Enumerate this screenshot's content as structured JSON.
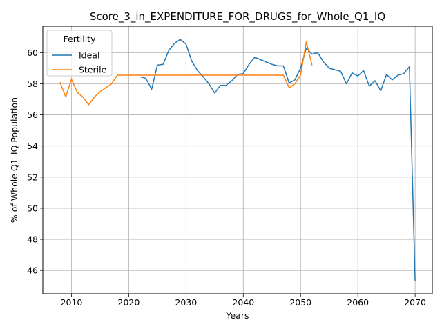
{
  "chart_data": {
    "type": "line",
    "title": "Score_3_in_EXPENDITURE_FOR_DRUGS_for_Whole_Q1_IQ",
    "xlabel": "Years",
    "ylabel": "% of Whole Q1_IQ Population",
    "xlim": [
      2005,
      2073
    ],
    "ylim": [
      44.5,
      61.7
    ],
    "xticks": [
      2010,
      2020,
      2030,
      2040,
      2050,
      2060,
      2070
    ],
    "yticks": [
      46,
      48,
      50,
      52,
      54,
      56,
      58,
      60
    ],
    "grid": true,
    "legend": {
      "title": "Fertility",
      "placement": "top-left"
    },
    "series": [
      {
        "name": "Ideal",
        "color": "#1f77b4",
        "points": [
          [
            2022,
            58.45
          ],
          [
            2023,
            58.35
          ],
          [
            2024,
            57.65
          ],
          [
            2025,
            59.2
          ],
          [
            2026,
            59.25
          ],
          [
            2027,
            60.15
          ],
          [
            2028,
            60.6
          ],
          [
            2029,
            60.85
          ],
          [
            2030,
            60.55
          ],
          [
            2031,
            59.45
          ],
          [
            2032,
            58.85
          ],
          [
            2033,
            58.45
          ],
          [
            2034,
            58.0
          ],
          [
            2035,
            57.4
          ],
          [
            2036,
            57.9
          ],
          [
            2037,
            57.9
          ],
          [
            2038,
            58.2
          ],
          [
            2039,
            58.6
          ],
          [
            2040,
            58.65
          ],
          [
            2041,
            59.25
          ],
          [
            2042,
            59.7
          ],
          [
            2043,
            59.55
          ],
          [
            2044,
            59.4
          ],
          [
            2045,
            59.25
          ],
          [
            2046,
            59.15
          ],
          [
            2047,
            59.15
          ],
          [
            2048,
            58.05
          ],
          [
            2049,
            58.25
          ],
          [
            2050,
            59.0
          ],
          [
            2051,
            60.3
          ],
          [
            2052,
            59.9
          ],
          [
            2053,
            60.0
          ],
          [
            2054,
            59.4
          ],
          [
            2055,
            59.0
          ],
          [
            2056,
            58.9
          ],
          [
            2057,
            58.8
          ],
          [
            2058,
            58.0
          ],
          [
            2059,
            58.7
          ],
          [
            2060,
            58.5
          ],
          [
            2061,
            58.85
          ],
          [
            2062,
            57.85
          ],
          [
            2063,
            58.2
          ],
          [
            2064,
            57.55
          ],
          [
            2065,
            58.6
          ],
          [
            2066,
            58.25
          ],
          [
            2067,
            58.55
          ],
          [
            2068,
            58.65
          ],
          [
            2069,
            59.1
          ],
          [
            2070,
            45.3
          ]
        ]
      },
      {
        "name": "Sterile",
        "color": "#ff7f0e",
        "points": [
          [
            2008,
            58.1
          ],
          [
            2009,
            57.15
          ],
          [
            2010,
            58.3
          ],
          [
            2011,
            57.45
          ],
          [
            2012,
            57.15
          ],
          [
            2013,
            56.65
          ],
          [
            2014,
            57.15
          ],
          [
            2015,
            57.5
          ],
          [
            2016,
            57.75
          ],
          [
            2017,
            58.0
          ],
          [
            2018,
            58.55
          ],
          [
            2019,
            58.55
          ],
          [
            2020,
            58.55
          ],
          [
            2021,
            58.55
          ],
          [
            2022,
            58.55
          ],
          [
            2023,
            58.55
          ],
          [
            2024,
            58.55
          ],
          [
            2025,
            58.55
          ],
          [
            2026,
            58.55
          ],
          [
            2027,
            58.55
          ],
          [
            2028,
            58.55
          ],
          [
            2029,
            58.55
          ],
          [
            2030,
            58.55
          ],
          [
            2031,
            58.55
          ],
          [
            2032,
            58.55
          ],
          [
            2033,
            58.55
          ],
          [
            2034,
            58.55
          ],
          [
            2035,
            58.55
          ],
          [
            2036,
            58.55
          ],
          [
            2037,
            58.55
          ],
          [
            2038,
            58.55
          ],
          [
            2039,
            58.55
          ],
          [
            2040,
            58.55
          ],
          [
            2041,
            58.55
          ],
          [
            2042,
            58.55
          ],
          [
            2043,
            58.55
          ],
          [
            2044,
            58.55
          ],
          [
            2045,
            58.55
          ],
          [
            2046,
            58.55
          ],
          [
            2047,
            58.55
          ],
          [
            2048,
            57.75
          ],
          [
            2049,
            58.0
          ],
          [
            2050,
            58.55
          ],
          [
            2051,
            60.7
          ],
          [
            2052,
            59.2
          ]
        ]
      }
    ]
  }
}
